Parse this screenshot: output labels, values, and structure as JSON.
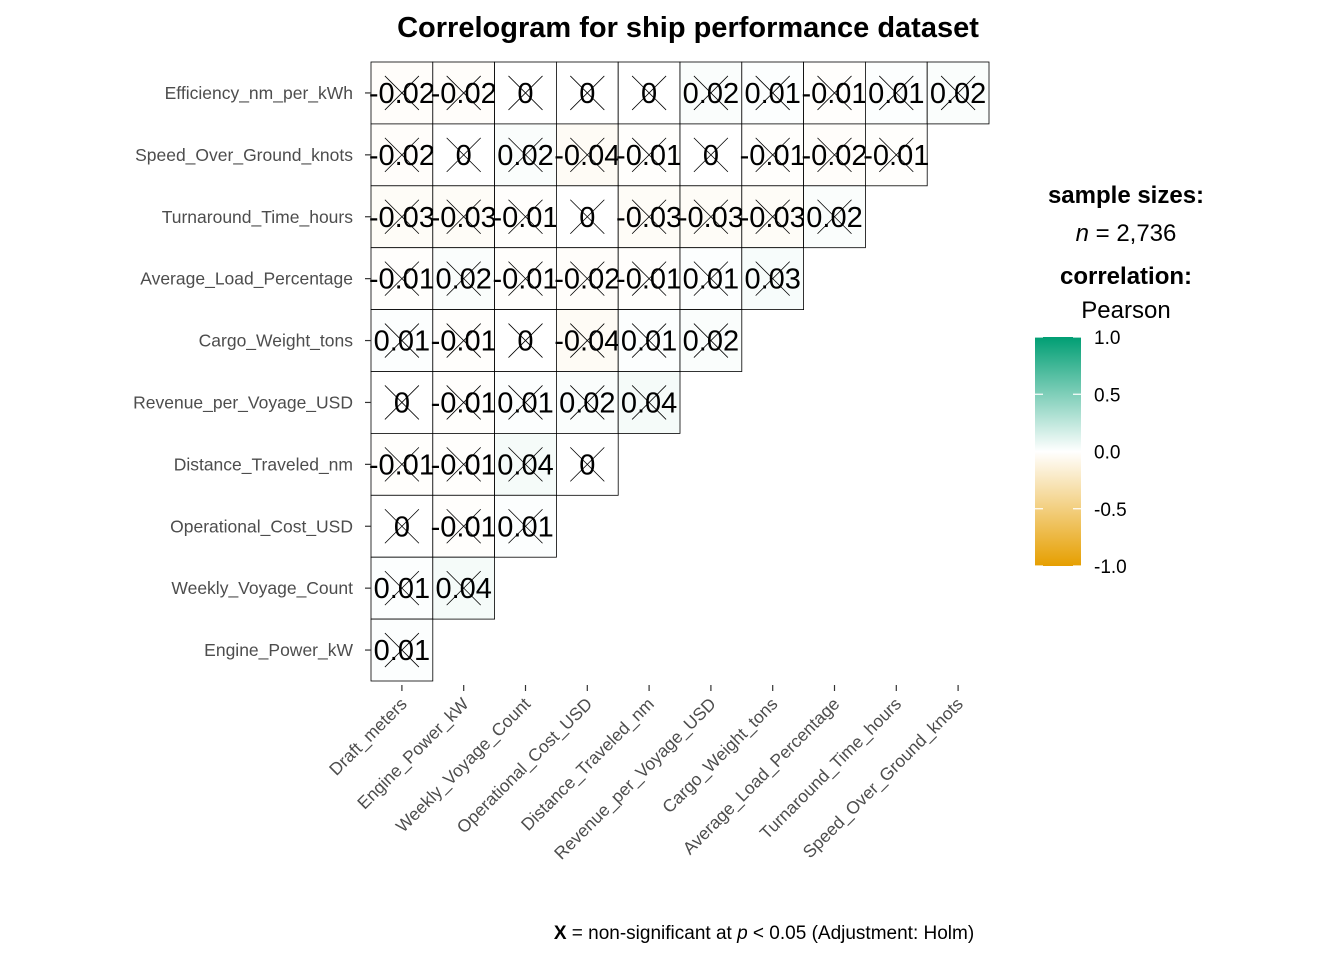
{
  "chart_data": {
    "type": "heatmap",
    "title": "Correlogram for ship performance dataset",
    "y_labels": [
      "Efficiency_nm_per_kWh",
      "Speed_Over_Ground_knots",
      "Turnaround_Time_hours",
      "Average_Load_Percentage",
      "Cargo_Weight_tons",
      "Revenue_per_Voyage_USD",
      "Distance_Traveled_nm",
      "Operational_Cost_USD",
      "Weekly_Voyage_Count",
      "Engine_Power_kW"
    ],
    "x_labels": [
      "Draft_meters",
      "Engine_Power_kW",
      "Weekly_Voyage_Count",
      "Operational_Cost_USD",
      "Distance_Traveled_nm",
      "Revenue_per_Voyage_USD",
      "Cargo_Weight_tons",
      "Average_Load_Percentage",
      "Turnaround_Time_hours",
      "Speed_Over_Ground_knots"
    ],
    "values": [
      [
        -0.02,
        -0.02,
        0,
        0,
        0,
        0.02,
        0.01,
        -0.01,
        0.01,
        0.02
      ],
      [
        -0.02,
        0,
        0.02,
        -0.04,
        -0.01,
        0,
        -0.01,
        -0.02,
        -0.01
      ],
      [
        -0.03,
        -0.03,
        -0.01,
        0,
        -0.03,
        -0.03,
        -0.03,
        0.02
      ],
      [
        -0.01,
        0.02,
        -0.01,
        -0.02,
        -0.01,
        0.01,
        0.03
      ],
      [
        0.01,
        -0.01,
        0,
        -0.04,
        0.01,
        0.02
      ],
      [
        0,
        -0.01,
        0.01,
        0.02,
        0.04
      ],
      [
        -0.01,
        -0.01,
        0.04,
        0
      ],
      [
        0,
        -0.01,
        0.01
      ],
      [
        0.01,
        0.04
      ],
      [
        0.01
      ]
    ],
    "cell_labels": [
      [
        "-0.02",
        "-0.02",
        "0",
        "0",
        "0",
        "0.02",
        "0.01",
        "-0.01",
        "0.01",
        "0.02"
      ],
      [
        "-0.02",
        "0",
        "0.02",
        "-0.04",
        "-0.01",
        "0",
        "-0.01",
        "-0.02",
        "-0.01"
      ],
      [
        "-0.03",
        "-0.03",
        "-0.01",
        "0",
        "-0.03",
        "-0.03",
        "-0.03",
        "0.02"
      ],
      [
        "-0.01",
        "0.02",
        "-0.01",
        "-0.02",
        "-0.01",
        "0.01",
        "0.03"
      ],
      [
        "0.01",
        "-0.01",
        "0",
        "-0.04",
        "0.01",
        "0.02"
      ],
      [
        "0",
        "-0.01",
        "0.01",
        "0.02",
        "0.04"
      ],
      [
        "-0.01",
        "-0.01",
        "0.04",
        "0"
      ],
      [
        "0",
        "-0.01",
        "0.01"
      ],
      [
        "0.01",
        "0.04"
      ],
      [
        "0.01"
      ]
    ],
    "non_significant": "all",
    "colors": {
      "low": "#E69F00",
      "mid": "#FFFFFF",
      "high": "#009E73"
    },
    "color_limits": [
      -1,
      1
    ],
    "legend": {
      "sample_title": "sample sizes:",
      "n_label": "n",
      "n_text": " = 2,736",
      "corr_title": "correlation:",
      "corr_method": "Pearson",
      "ticks": [
        "1.0",
        "0.5",
        "0.0",
        "-0.5",
        "-1.0"
      ],
      "placement": "right"
    },
    "caption": {
      "mark": "X",
      "text1": " = non-significant at ",
      "p": "p",
      "text2": " < 0.05 (Adjustment: Holm)"
    }
  }
}
